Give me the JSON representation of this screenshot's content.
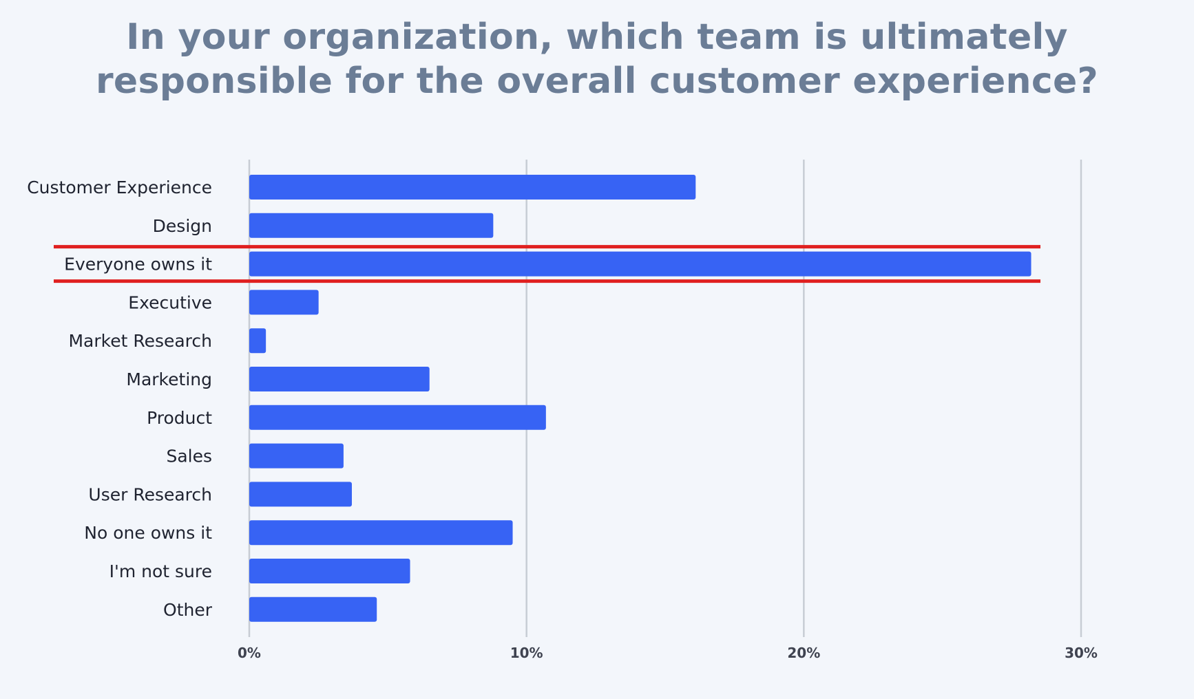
{
  "chart_data": {
    "type": "bar",
    "orientation": "horizontal",
    "title_lines": [
      "In your organization, which team is ultimately",
      "responsible for the overall customer experience?"
    ],
    "categories": [
      "Customer Experience",
      "Design",
      "Everyone owns it",
      "Executive",
      "Market Research",
      "Marketing",
      "Product",
      "Sales",
      "User Research",
      "No one owns it",
      "I'm not sure",
      "Other"
    ],
    "values": [
      16.1,
      8.8,
      28.2,
      2.5,
      0.6,
      6.5,
      10.7,
      3.4,
      3.7,
      9.5,
      5.8,
      4.6
    ],
    "xlim": [
      0,
      30
    ],
    "x_ticks": [
      0,
      10,
      20,
      30
    ],
    "x_tick_labels": [
      "0%",
      "10%",
      "20%",
      "30%"
    ],
    "grid": "vertical",
    "highlighted_category": "Everyone owns it",
    "colors": {
      "bar": "#3763f4",
      "grid": "#c7ccd4",
      "highlight": "#e02020",
      "background": "#f3f6fb",
      "title": "#6b7d96"
    }
  }
}
